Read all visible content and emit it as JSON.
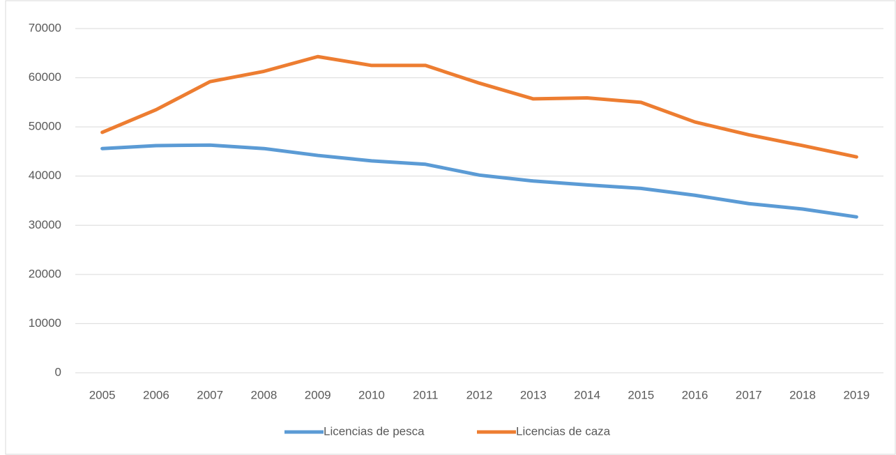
{
  "chart_data": {
    "type": "line",
    "x": [
      "2005",
      "2006",
      "2007",
      "2008",
      "2009",
      "2010",
      "2011",
      "2012",
      "2013",
      "2014",
      "2015",
      "2016",
      "2017",
      "2018",
      "2019"
    ],
    "series": [
      {
        "name": "Licencias de pesca",
        "color": "#5b9bd5",
        "values": [
          45600,
          46200,
          46300,
          45600,
          44200,
          43100,
          42400,
          40200,
          39000,
          38200,
          37500,
          36100,
          34400,
          33300,
          31700
        ]
      },
      {
        "name": "Licencias de caza",
        "color": "#ed7d31",
        "values": [
          48900,
          53500,
          59200,
          61300,
          64300,
          62500,
          62500,
          58900,
          55700,
          55900,
          55000,
          51000,
          48400,
          46200,
          43900
        ]
      }
    ],
    "ylim": [
      0,
      70000
    ],
    "yticks": [
      0,
      10000,
      20000,
      30000,
      40000,
      50000,
      60000,
      70000
    ],
    "grid": true,
    "legend": "bottom"
  }
}
